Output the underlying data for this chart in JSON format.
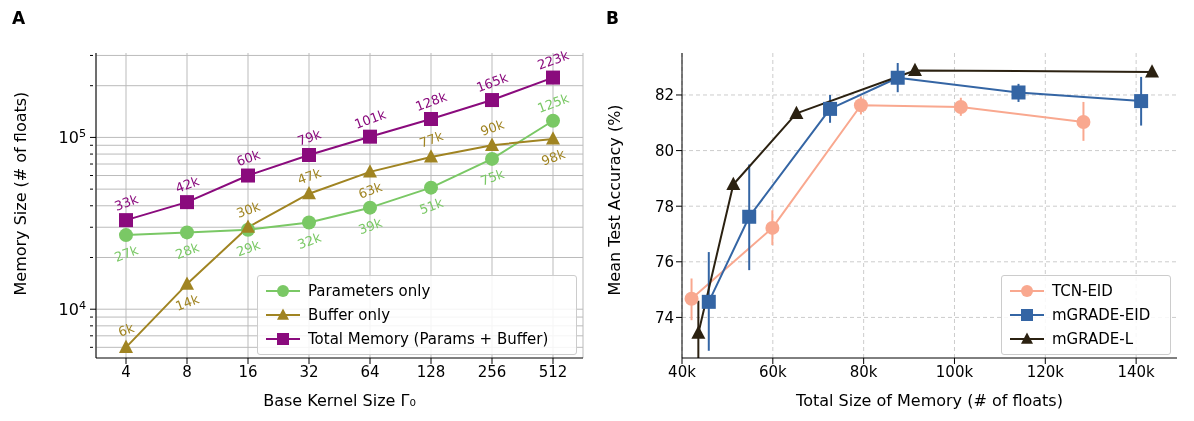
{
  "chart_data": [
    {
      "type": "line",
      "title": "A",
      "xlabel": "Base Kernel Size Γ₀",
      "ylabel": "Memory Size (# of floats)",
      "categories": [
        "4",
        "8",
        "16",
        "32",
        "64",
        "128",
        "256",
        "512"
      ],
      "series": [
        {
          "name": "Parameters only",
          "color": "#7ac865",
          "marker": "circle",
          "values": [
            27000,
            28000,
            29000,
            32000,
            39000,
            51000,
            75000,
            125000
          ],
          "value_labels": [
            "27k",
            "28k",
            "29k",
            "32k",
            "39k",
            "51k",
            "75k",
            "125k"
          ]
        },
        {
          "name": "Buffer only",
          "color": "#a08422",
          "marker": "triangle",
          "values": [
            6000,
            14000,
            30000,
            47000,
            63000,
            77000,
            90000,
            98000
          ],
          "value_labels": [
            "6k",
            "14k",
            "30k",
            "47k",
            "63k",
            "77k",
            "90k",
            "98k"
          ]
        },
        {
          "name": "Total Memory (Params + Buffer)",
          "color": "#8a0b7d",
          "marker": "square",
          "values": [
            33000,
            42000,
            60000,
            79000,
            101000,
            128000,
            165000,
            223000
          ],
          "value_labels": [
            "33k",
            "42k",
            "60k",
            "79k",
            "101k",
            "128k",
            "165k",
            "223k"
          ]
        }
      ],
      "log": "y",
      "ylim": [
        5200,
        310000
      ],
      "yticks": [
        {
          "value": 6000,
          "label": null
        },
        {
          "value": 7000,
          "label": null
        },
        {
          "value": 8000,
          "label": null
        },
        {
          "value": 9000,
          "label": null
        },
        {
          "value": 10000,
          "label": "10$^{4}$"
        },
        {
          "value": 20000,
          "label": null
        },
        {
          "value": 30000,
          "label": null
        },
        {
          "value": 40000,
          "label": null
        },
        {
          "value": 50000,
          "label": null
        },
        {
          "value": 60000,
          "label": null
        },
        {
          "value": 70000,
          "label": null
        },
        {
          "value": 80000,
          "label": null
        },
        {
          "value": 90000,
          "label": null
        },
        {
          "value": 100000,
          "label": "10$^{5}$"
        },
        {
          "value": 200000,
          "label": null
        },
        {
          "value": 300000,
          "label": null
        }
      ],
      "grid": true,
      "legend": "bottom right",
      "line_style": "solid"
    },
    {
      "type": "line",
      "title": "B",
      "xlabel": "Total Size of Memory (# of floats)",
      "ylabel": "Mean Test Accuracy (%)",
      "series": [
        {
          "name": "TCN-EID",
          "color": "#f9a88f",
          "marker": "circle",
          "x": [
            42100,
            59900,
            79400,
            101400,
            128400
          ],
          "values": [
            74.67,
            77.22,
            81.63,
            81.57,
            81.03
          ],
          "errors": [
            [
              73.9,
              75.4
            ],
            [
              76.6,
              77.85
            ],
            [
              81.3,
              81.95
            ],
            [
              81.25,
              81.9
            ],
            [
              80.35,
              81.75
            ]
          ]
        },
        {
          "name": "mGRADE-EID",
          "color": "#3465a4",
          "marker": "square",
          "x": [
            45900,
            54800,
            72600,
            87500,
            114100,
            141100
          ],
          "values": [
            74.56,
            77.62,
            81.5,
            82.62,
            82.09,
            81.78
          ],
          "errors": [
            [
              72.8,
              76.35
            ],
            [
              75.7,
              79.5
            ],
            [
              81.0,
              82.0
            ],
            [
              82.1,
              83.15
            ],
            [
              81.75,
              82.4
            ],
            [
              80.9,
              82.65
            ]
          ]
        },
        {
          "name": "mGRADE-L",
          "color": "#2b2111",
          "marker": "triangle",
          "x": [
            43600,
            51300,
            65200,
            91300,
            143500
          ],
          "values": [
            73.43,
            78.78,
            81.34,
            82.88,
            82.83
          ],
          "errors": [
            [
              72.54,
              74.6
            ],
            null,
            null,
            null,
            null
          ]
        }
      ],
      "xlim": [
        40000,
        149000
      ],
      "xticks": [
        {
          "value": 40000,
          "label": "40k"
        },
        {
          "value": 60000,
          "label": "60k"
        },
        {
          "value": 80000,
          "label": "80k"
        },
        {
          "value": 100000,
          "label": "100k"
        },
        {
          "value": 120000,
          "label": "120k"
        },
        {
          "value": 140000,
          "label": "140k"
        }
      ],
      "ylim": [
        72.54,
        83.51
      ],
      "yticks": [
        74,
        76,
        78,
        80,
        82
      ],
      "grid": "dashed",
      "legend": "bottom right",
      "line_style": "solid"
    }
  ]
}
